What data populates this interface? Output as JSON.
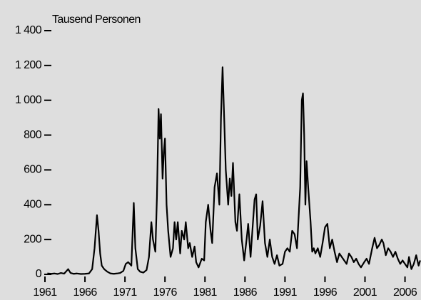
{
  "chart_data": {
    "type": "line",
    "axis_label": "Tausend Personen",
    "color": "#000000",
    "xlim": [
      1961,
      2008
    ],
    "xticks": [
      1961,
      1966,
      1971,
      1976,
      1981,
      1986,
      1991,
      1996,
      2001,
      2006
    ],
    "ylim": [
      0,
      1400
    ],
    "yticks": [
      0,
      200,
      400,
      600,
      800,
      {
        "value": 1000,
        "label": "1 000"
      },
      {
        "value": 1200,
        "label": "1 200"
      },
      {
        "value": 1400,
        "label": "1 400"
      }
    ],
    "grid": false,
    "x": [
      1961.3,
      1961.8,
      1962.2,
      1962.6,
      1963.0,
      1963.4,
      1963.9,
      1964.2,
      1964.6,
      1965.0,
      1965.5,
      1966.0,
      1966.5,
      1966.9,
      1967.2,
      1967.5,
      1967.7,
      1967.9,
      1968.1,
      1968.4,
      1968.8,
      1969.2,
      1969.6,
      1970.0,
      1970.4,
      1970.8,
      1971.1,
      1971.4,
      1971.8,
      1972.1,
      1972.3,
      1972.6,
      1972.9,
      1973.3,
      1973.7,
      1974.0,
      1974.3,
      1974.5,
      1974.8,
      1975.0,
      1975.2,
      1975.35,
      1975.5,
      1975.7,
      1975.85,
      1976.0,
      1976.2,
      1976.4,
      1976.7,
      1977.0,
      1977.2,
      1977.4,
      1977.6,
      1977.9,
      1978.1,
      1978.4,
      1978.6,
      1978.9,
      1979.1,
      1979.4,
      1979.7,
      1979.9,
      1980.2,
      1980.6,
      1980.9,
      1981.1,
      1981.4,
      1981.7,
      1981.9,
      1982.2,
      1982.5,
      1982.8,
      1983.0,
      1983.2,
      1983.4,
      1983.6,
      1983.9,
      1984.1,
      1984.3,
      1984.5,
      1984.8,
      1985.0,
      1985.3,
      1985.6,
      1985.9,
      1986.2,
      1986.4,
      1986.7,
      1987.0,
      1987.2,
      1987.4,
      1987.6,
      1987.9,
      1988.2,
      1988.5,
      1988.8,
      1989.1,
      1989.4,
      1989.7,
      1990.0,
      1990.3,
      1990.7,
      1991.0,
      1991.3,
      1991.6,
      1991.9,
      1992.2,
      1992.5,
      1992.9,
      1993.1,
      1993.25,
      1993.4,
      1993.55,
      1993.7,
      1993.9,
      1994.2,
      1994.4,
      1994.6,
      1994.8,
      1995.1,
      1995.4,
      1995.7,
      1996.0,
      1996.3,
      1996.6,
      1996.9,
      1997.2,
      1997.5,
      1997.8,
      1998.1,
      1998.4,
      1998.7,
      1999.0,
      1999.3,
      1999.6,
      1999.9,
      2000.2,
      2000.5,
      2000.9,
      2001.2,
      2001.5,
      2001.9,
      2002.2,
      2002.5,
      2002.8,
      2003.1,
      2003.3,
      2003.6,
      2003.9,
      2004.2,
      2004.5,
      2004.8,
      2005.1,
      2005.4,
      2005.7,
      2006.0,
      2006.3,
      2006.5,
      2006.8,
      2007.1,
      2007.4,
      2007.7,
      2007.9
    ],
    "values": [
      5,
      3,
      5,
      2,
      8,
      4,
      30,
      8,
      3,
      5,
      2,
      3,
      5,
      30,
      150,
      340,
      250,
      120,
      50,
      30,
      15,
      5,
      3,
      5,
      8,
      20,
      60,
      70,
      50,
      410,
      150,
      30,
      15,
      10,
      25,
      100,
      300,
      200,
      130,
      450,
      950,
      780,
      920,
      550,
      700,
      780,
      400,
      250,
      100,
      150,
      300,
      200,
      300,
      120,
      250,
      200,
      300,
      150,
      180,
      100,
      160,
      70,
      40,
      90,
      80,
      300,
      400,
      250,
      180,
      500,
      580,
      400,
      900,
      1190,
      900,
      600,
      400,
      550,
      450,
      640,
      300,
      250,
      460,
      200,
      80,
      200,
      290,
      100,
      300,
      430,
      460,
      200,
      280,
      420,
      180,
      100,
      200,
      100,
      60,
      110,
      50,
      60,
      130,
      150,
      130,
      250,
      230,
      150,
      500,
      1000,
      1040,
      800,
      400,
      650,
      500,
      300,
      130,
      150,
      120,
      150,
      100,
      180,
      270,
      290,
      150,
      200,
      130,
      70,
      120,
      100,
      80,
      60,
      120,
      100,
      70,
      90,
      60,
      40,
      70,
      90,
      60,
      150,
      210,
      150,
      170,
      200,
      180,
      110,
      150,
      130,
      100,
      130,
      90,
      60,
      80,
      60,
      40,
      100,
      30,
      60,
      110,
      50,
      80
    ]
  }
}
